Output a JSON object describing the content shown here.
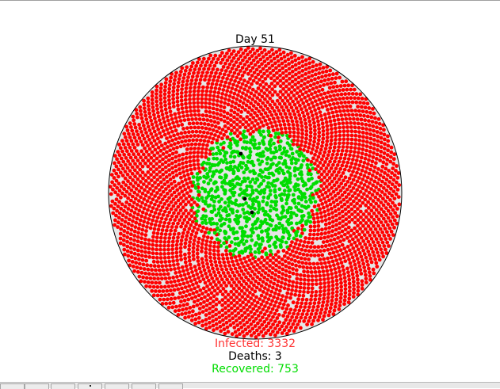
{
  "figure": {
    "title": "Day 51"
  },
  "stats": {
    "infected": "Infected: 3332",
    "deaths": "Deaths: 3",
    "recovered": "Recovered: 753"
  },
  "colors": {
    "infected": "#ff0000",
    "recovered": "#00dd00",
    "dead": "#000000",
    "background": "#e6e6e6",
    "infected_text": "#ff3333",
    "recovered_text": "#00dd00",
    "deaths_text": "#000000"
  },
  "chart_data": {
    "type": "scatter",
    "title": "Day 51",
    "grid": false,
    "series": [
      {
        "name": "Infected",
        "count": 3332
      },
      {
        "name": "Recovered",
        "count": 753
      },
      {
        "name": "Deaths",
        "count": 3
      }
    ]
  },
  "toolbar": {
    "buttons": [
      {
        "icon": "home-icon"
      },
      {
        "icon": "back-icon"
      },
      {
        "icon": "forward-icon"
      },
      {
        "icon": "pan-icon"
      },
      {
        "icon": "zoom-icon"
      },
      {
        "icon": "subplots-icon"
      },
      {
        "icon": "save-icon"
      }
    ]
  }
}
